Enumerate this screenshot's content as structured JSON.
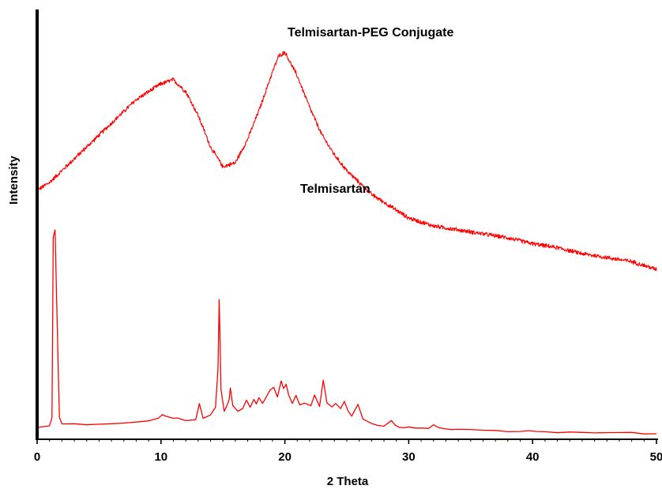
{
  "chart_data": {
    "type": "line",
    "xlabel": "2 Theta",
    "ylabel": "Intensity",
    "xlim": [
      0,
      50
    ],
    "x_ticks": [
      "0",
      "10",
      "20",
      "30",
      "40",
      "50"
    ],
    "grid": false,
    "line_color": "#ff0000",
    "series": [
      {
        "name": "Telmisartan-PEG Conjugate",
        "noise": 0.06,
        "x": [
          0,
          1,
          2,
          3,
          4,
          5,
          6,
          7,
          8,
          9,
          10,
          11,
          12,
          13,
          14,
          15,
          16,
          17,
          18,
          19,
          19.5,
          20,
          21,
          22,
          23,
          24,
          25,
          26,
          27,
          28,
          29,
          30,
          32,
          34,
          36,
          38,
          40,
          42,
          44,
          46,
          48,
          50
        ],
        "y": [
          6.3,
          6.5,
          6.8,
          7.1,
          7.4,
          7.7,
          8.0,
          8.3,
          8.6,
          8.8,
          9.0,
          9.1,
          8.8,
          8.2,
          7.4,
          6.9,
          7.0,
          7.6,
          8.4,
          9.3,
          9.7,
          9.8,
          9.2,
          8.4,
          7.7,
          7.2,
          6.8,
          6.5,
          6.2,
          6.0,
          5.8,
          5.6,
          5.4,
          5.3,
          5.2,
          5.1,
          4.95,
          4.85,
          4.7,
          4.6,
          4.5,
          4.3
        ]
      },
      {
        "name": "Telmisartan",
        "x": [
          0,
          1,
          1.2,
          1.3,
          1.45,
          1.6,
          1.8,
          2,
          3,
          4,
          5,
          6,
          7,
          8,
          9,
          9.8,
          10.1,
          10.4,
          11,
          11.3,
          12,
          12.8,
          13.1,
          13.4,
          14,
          14.4,
          14.6,
          14.7,
          14.85,
          15.1,
          15.3,
          15.5,
          15.6,
          15.8,
          16.2,
          16.6,
          16.9,
          17.2,
          17.5,
          17.7,
          17.9,
          18.2,
          18.5,
          18.8,
          19.1,
          19.4,
          19.7,
          19.9,
          20.1,
          20.3,
          20.6,
          20.9,
          21.2,
          21.6,
          22.1,
          22.4,
          22.8,
          23.1,
          23.4,
          23.8,
          24.1,
          24.5,
          24.8,
          25.1,
          25.4,
          25.9,
          26.3,
          27,
          27.5,
          28,
          28.6,
          28.9,
          29.2,
          29.6,
          30,
          30.5,
          31,
          31.6,
          32,
          32.4,
          32.8,
          33.4,
          34,
          35,
          36,
          37,
          38,
          39,
          39.7,
          40.3,
          41,
          42,
          43,
          44,
          45,
          46,
          47,
          48,
          49,
          50
        ],
        "y": [
          0.3,
          0.35,
          0.55,
          5.1,
          5.3,
          3.2,
          0.55,
          0.4,
          0.38,
          0.37,
          0.37,
          0.4,
          0.42,
          0.43,
          0.47,
          0.55,
          0.62,
          0.58,
          0.52,
          0.55,
          0.48,
          0.5,
          0.9,
          0.52,
          0.62,
          0.82,
          1.75,
          3.55,
          1.25,
          0.72,
          0.82,
          1.0,
          1.3,
          0.85,
          0.72,
          0.78,
          0.98,
          0.82,
          1.02,
          0.88,
          1.05,
          0.92,
          1.08,
          1.25,
          1.32,
          1.08,
          1.48,
          1.3,
          1.38,
          1.12,
          0.92,
          1.12,
          0.88,
          0.92,
          0.85,
          1.12,
          0.82,
          1.5,
          0.92,
          0.82,
          0.92,
          0.78,
          0.95,
          0.72,
          0.6,
          0.88,
          0.5,
          0.4,
          0.36,
          0.34,
          0.48,
          0.36,
          0.3,
          0.3,
          0.3,
          0.28,
          0.28,
          0.28,
          0.36,
          0.3,
          0.26,
          0.24,
          0.24,
          0.24,
          0.22,
          0.22,
          0.2,
          0.2,
          0.22,
          0.2,
          0.2,
          0.18,
          0.18,
          0.18,
          0.17,
          0.16,
          0.16,
          0.16,
          0.14,
          0.14
        ]
      }
    ]
  }
}
